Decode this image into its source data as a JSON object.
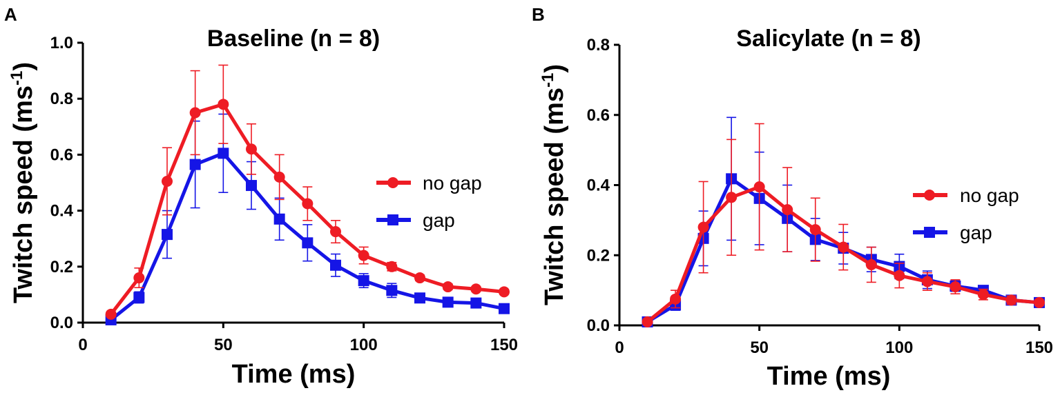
{
  "chart_data": [
    {
      "type": "line",
      "panel_letter": "A",
      "title": "Baseline (n = 8)",
      "xlabel": "Time (ms)",
      "ylabel_main": "Twitch speed (ms",
      "ylabel_sup": "-1",
      "ylabel_close": ")",
      "xlim": [
        0,
        150
      ],
      "ylim": [
        0,
        1.0
      ],
      "xticks": [
        0,
        50,
        100,
        150
      ],
      "xtick_labels": [
        "0",
        "50",
        "100",
        "150"
      ],
      "yticks": [
        0,
        0.2,
        0.4,
        0.6,
        0.8,
        1.0
      ],
      "ytick_labels": [
        "0.0",
        "0.2",
        "0.4",
        "0.6",
        "0.8",
        "1.0"
      ],
      "legend_position": "center-right",
      "x": [
        10,
        20,
        30,
        40,
        50,
        60,
        70,
        80,
        90,
        100,
        110,
        120,
        130,
        140,
        150
      ],
      "series": [
        {
          "name": "no gap",
          "color": "#ee1c24",
          "marker": "circle",
          "values": [
            0.03,
            0.16,
            0.505,
            0.75,
            0.78,
            0.62,
            0.52,
            0.425,
            0.325,
            0.24,
            0.2,
            0.16,
            0.128,
            0.12,
            0.11
          ],
          "errors": [
            0.0,
            0.035,
            0.12,
            0.15,
            0.14,
            0.09,
            0.08,
            0.06,
            0.04,
            0.03,
            0.015,
            0.01,
            0.01,
            0.008,
            0.008
          ]
        },
        {
          "name": "gap",
          "color": "#1515e6",
          "marker": "square",
          "values": [
            0.01,
            0.09,
            0.315,
            0.565,
            0.605,
            0.49,
            0.37,
            0.285,
            0.205,
            0.15,
            0.115,
            0.088,
            0.073,
            0.07,
            0.05
          ],
          "errors": [
            0.0,
            0.02,
            0.085,
            0.155,
            0.14,
            0.085,
            0.075,
            0.065,
            0.04,
            0.025,
            0.025,
            0.01,
            0.01,
            0.01,
            0.008
          ]
        }
      ]
    },
    {
      "type": "line",
      "panel_letter": "B",
      "title": "Salicylate (n = 8)",
      "xlabel": "Time (ms)",
      "ylabel_main": "Twitch speed (ms",
      "ylabel_sup": "-1",
      "ylabel_close": ")",
      "xlim": [
        0,
        150
      ],
      "ylim": [
        0,
        0.8
      ],
      "xticks": [
        0,
        50,
        100,
        150
      ],
      "xtick_labels": [
        "0",
        "50",
        "100",
        "150"
      ],
      "yticks": [
        0,
        0.2,
        0.4,
        0.6,
        0.8
      ],
      "ytick_labels": [
        "0.0",
        "0.2",
        "0.4",
        "0.6",
        "0.8"
      ],
      "legend_position": "center-right",
      "x": [
        10,
        20,
        30,
        40,
        50,
        60,
        70,
        80,
        90,
        100,
        110,
        120,
        130,
        140,
        150
      ],
      "series": [
        {
          "name": "no gap",
          "color": "#ee1c24",
          "marker": "circle",
          "values": [
            0.01,
            0.075,
            0.28,
            0.365,
            0.395,
            0.33,
            0.273,
            0.223,
            0.173,
            0.142,
            0.125,
            0.11,
            0.088,
            0.072,
            0.065
          ],
          "errors": [
            0.0,
            0.025,
            0.13,
            0.165,
            0.18,
            0.12,
            0.09,
            0.065,
            0.05,
            0.035,
            0.025,
            0.02,
            0.015,
            0.012,
            0.008
          ]
        },
        {
          "name": "gap",
          "color": "#1515e6",
          "marker": "square",
          "values": [
            0.01,
            0.058,
            0.248,
            0.418,
            0.362,
            0.305,
            0.245,
            0.22,
            0.188,
            0.168,
            0.13,
            0.112,
            0.1,
            0.072,
            0.065
          ],
          "errors": [
            0.0,
            0.015,
            0.078,
            0.175,
            0.132,
            0.095,
            0.06,
            0.045,
            0.035,
            0.035,
            0.025,
            0.015,
            0.012,
            0.01,
            0.008
          ]
        }
      ]
    }
  ]
}
